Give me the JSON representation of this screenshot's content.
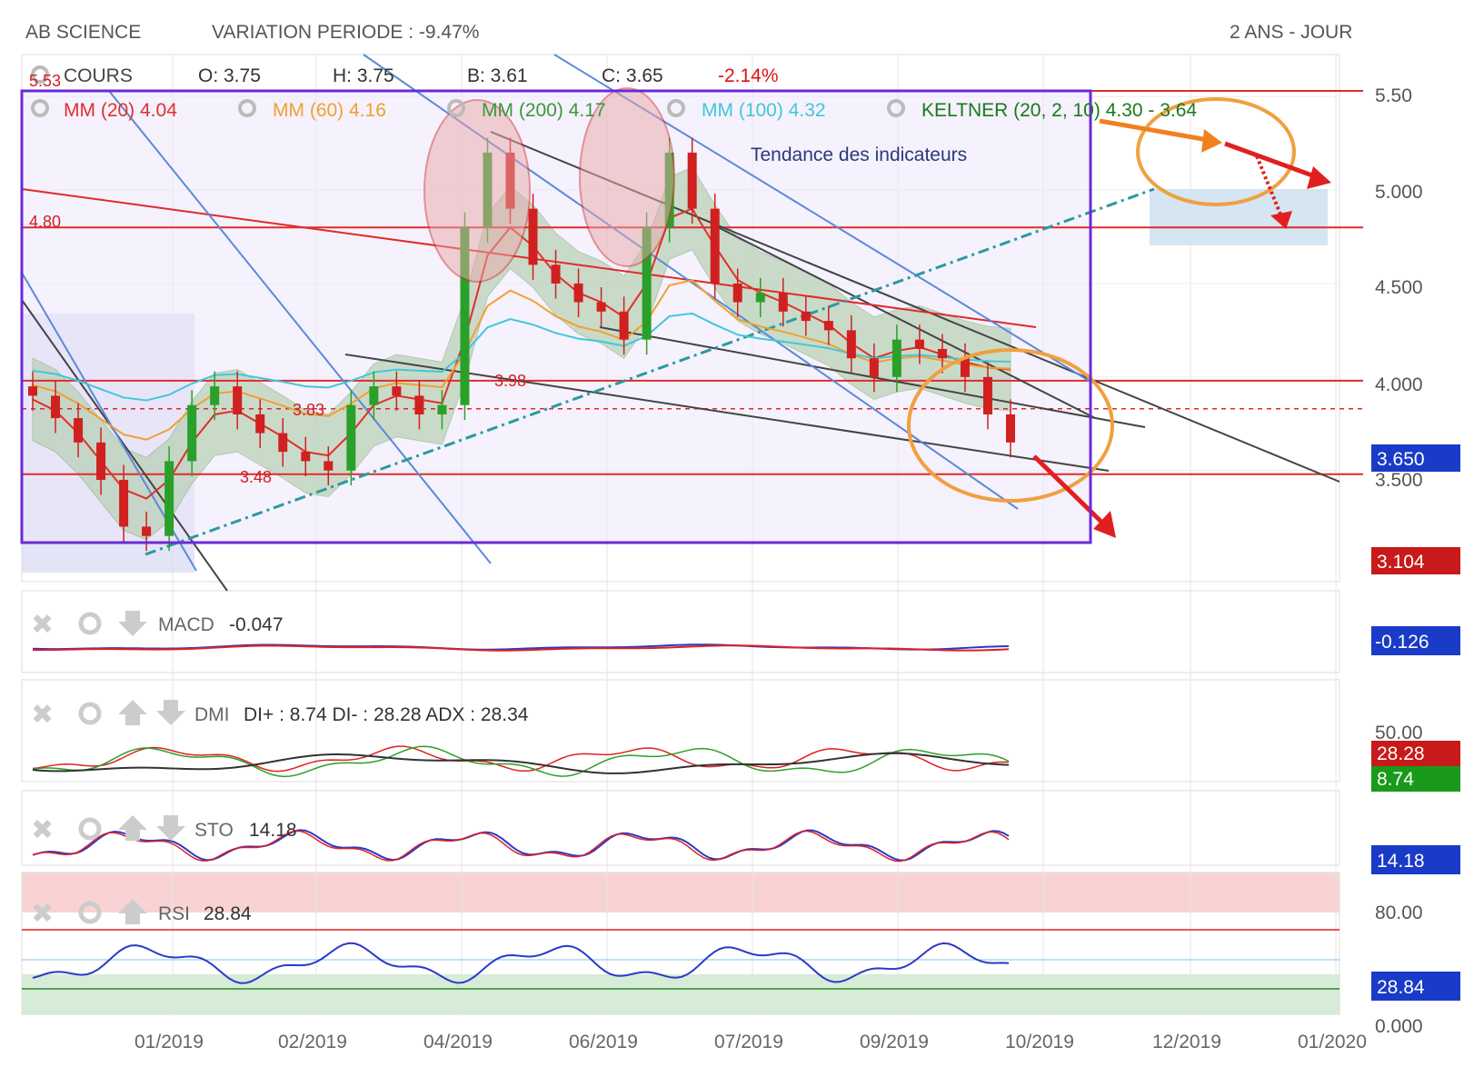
{
  "header": {
    "title": "AB SCIENCE",
    "variation": "VARIATION PERIODE : -9.47%",
    "period": "2 ANS - JOUR"
  },
  "quote": {
    "label": "COURS",
    "open": "O: 3.75",
    "high": "H: 3.75",
    "low": "B: 3.61",
    "close": "C: 3.65",
    "change": "-2.14%"
  },
  "indicators": {
    "mm20": "MM (20) 4.04",
    "mm60": "MM (60) 4.16",
    "mm200": "MM (200) 4.17",
    "mm100": "MM (100) 4.32",
    "keltner": "KELTNER (20, 2, 10) 4.30 - 3.64"
  },
  "annotations": {
    "trend_label": "Tendance des indicateurs",
    "level_553": "5.53",
    "level_480": "4.80",
    "level_398": "3.98",
    "level_383": "3.83",
    "level_348": "3.48"
  },
  "price_axis": {
    "ticks": [
      "5.50",
      "5.000",
      "4.500",
      "4.000",
      "3.500"
    ],
    "badge_current": "3.650",
    "badge_low": "3.104"
  },
  "macd": {
    "name": "MACD",
    "value": "-0.047",
    "badge": "-0.126"
  },
  "dmi": {
    "name": "DMI",
    "value": "DI+ : 8.74 DI- : 28.28 ADX : 28.34",
    "tick_top": "50.00",
    "badge_minus": "28.28",
    "badge_plus": "8.74"
  },
  "sto": {
    "name": "STO",
    "value": "14.18",
    "badge": "14.18"
  },
  "rsi": {
    "name": "RSI",
    "value": "28.84",
    "tick_top": "80.00",
    "tick_bottom": "0.000",
    "badge": "28.84"
  },
  "x_axis": {
    "ticks": [
      "01/2019",
      "02/2019",
      "04/2019",
      "06/2019",
      "07/2019",
      "09/2019",
      "10/2019",
      "12/2019",
      "01/2020"
    ]
  },
  "colors": {
    "mm20": "#e0302a",
    "mm60": "#f0a030",
    "mm200": "#3a9a3a",
    "mm100": "#40c8d8",
    "keltner": "#1a7a1a",
    "frame": "#6a2ad8",
    "badge_blue": "#1a3ac8",
    "badge_red": "#c81a1a",
    "badge_green": "#1a9a1a"
  },
  "chart_data": {
    "type": "line",
    "title": "AB SCIENCE",
    "x_ticks": [
      "01/2019",
      "02/2019",
      "04/2019",
      "06/2019",
      "07/2019",
      "09/2019",
      "10/2019",
      "12/2019",
      "01/2020"
    ],
    "ylim": [
      3.1,
      5.53
    ],
    "y_ticks": [
      3.5,
      4.0,
      4.5,
      5.0,
      5.5
    ],
    "horizontal_levels": [
      5.53,
      4.8,
      3.98,
      3.83,
      3.48
    ],
    "series": [
      {
        "name": "COURS",
        "values": [
          3.9,
          3.78,
          3.65,
          3.45,
          3.2,
          3.15,
          3.55,
          3.85,
          3.95,
          3.8,
          3.7,
          3.6,
          3.55,
          3.5,
          3.85,
          3.95,
          3.9,
          3.8,
          3.85,
          4.8,
          5.2,
          4.9,
          4.6,
          4.5,
          4.4,
          4.35,
          4.2,
          4.8,
          5.2,
          4.9,
          4.5,
          4.4,
          4.45,
          4.35,
          4.3,
          4.25,
          4.1,
          4.0,
          4.2,
          4.15,
          4.1,
          4.0,
          3.8,
          3.65
        ]
      },
      {
        "name": "MM (20)",
        "values": [
          3.88,
          3.82,
          3.7,
          3.55,
          3.4,
          3.35,
          3.45,
          3.65,
          3.8,
          3.82,
          3.75,
          3.68,
          3.6,
          3.58,
          3.7,
          3.85,
          3.9,
          3.88,
          3.86,
          4.2,
          4.65,
          4.8,
          4.7,
          4.55,
          4.45,
          4.4,
          4.32,
          4.5,
          4.85,
          4.9,
          4.7,
          4.52,
          4.45,
          4.4,
          4.34,
          4.28,
          4.18,
          4.1,
          4.14,
          4.16,
          4.12,
          4.08,
          4.05,
          4.04
        ]
      }
    ]
  }
}
